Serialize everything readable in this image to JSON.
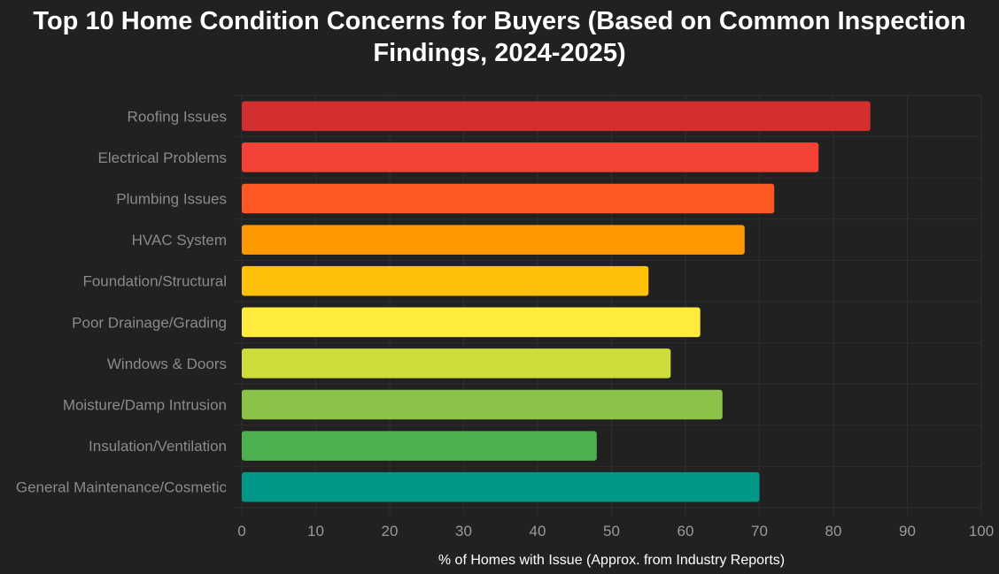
{
  "chart_data": {
    "type": "bar",
    "orientation": "horizontal",
    "title": "Top 10 Home Condition Concerns for Buyers (Based on Common Inspection Findings, 2024-2025)",
    "xlabel": "% of Homes with Issue (Approx. from Industry Reports)",
    "ylabel": "",
    "xlim": [
      0,
      100
    ],
    "x_ticks": [
      0,
      10,
      20,
      30,
      40,
      50,
      60,
      70,
      80,
      90,
      100
    ],
    "grid": true,
    "categories": [
      "Roofing Issues",
      "Electrical Problems",
      "Plumbing Issues",
      "HVAC System",
      "Foundation/Structural",
      "Poor Drainage/Grading",
      "Windows & Doors",
      "Moisture/Damp Intrusion",
      "Insulation/Ventilation",
      "General Maintenance/Cosmetic"
    ],
    "values": [
      85,
      78,
      72,
      68,
      55,
      62,
      58,
      65,
      48,
      70
    ],
    "colors": [
      "#d32f2f",
      "#f44336",
      "#ff5722",
      "#ff9800",
      "#ffc107",
      "#ffeb3b",
      "#cddc39",
      "#8bc34a",
      "#4caf50",
      "#009688"
    ],
    "background": "#212121",
    "grid_color": "#2e2e2e"
  }
}
